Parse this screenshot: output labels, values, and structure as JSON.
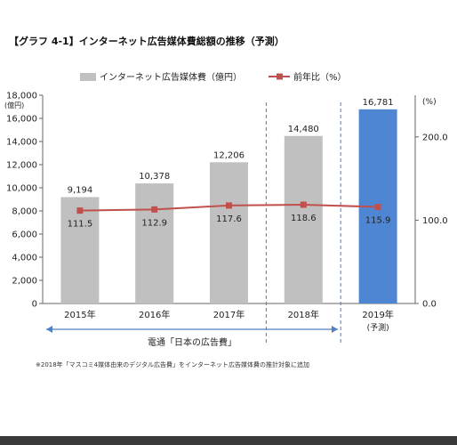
{
  "page": {
    "title": "【グラフ 4-1】インターネット広告媒体費総額の推移（予測）",
    "footnote": "※2018年「マスコミ4媒体由来のデジタル広告費」をインターネット広告媒体費の推計対象に追加",
    "bracket_label": "電通「日本の広告費」"
  },
  "chart_data": {
    "type": "bar",
    "categories": [
      "2015年",
      "2016年",
      "2017年",
      "2018年",
      "2019年"
    ],
    "category_sublabels": [
      "",
      "",
      "",
      "",
      "(予測)"
    ],
    "series": [
      {
        "name": "インターネット広告媒体費（億円）",
        "kind": "bar",
        "axis": "left",
        "values": [
          9194,
          10378,
          12206,
          14480,
          16781
        ],
        "labels": [
          "9,194",
          "10,378",
          "12,206",
          "14,480",
          "16,781"
        ],
        "colors": [
          "#c0c0c0",
          "#c0c0c0",
          "#c0c0c0",
          "#c0c0c0",
          "#4f86d4"
        ]
      },
      {
        "name": "前年比（%）",
        "kind": "line",
        "axis": "right",
        "color": "#c0504d",
        "values": [
          111.5,
          112.9,
          117.6,
          118.6,
          115.9
        ],
        "labels": [
          "111.5",
          "112.9",
          "117.6",
          "118.6",
          "115.9"
        ]
      }
    ],
    "y_left": {
      "label": "(億円)",
      "range": [
        0,
        18000
      ],
      "ticks": [
        "0",
        "2,000",
        "4,000",
        "6,000",
        "8,000",
        "10,000",
        "12,000",
        "14,000",
        "16,000",
        "18,000"
      ]
    },
    "y_right": {
      "label": "(%)",
      "range": [
        0,
        250
      ],
      "ticks": [
        "0.0",
        "100.0",
        "200.0"
      ]
    },
    "legend_position": "top"
  }
}
